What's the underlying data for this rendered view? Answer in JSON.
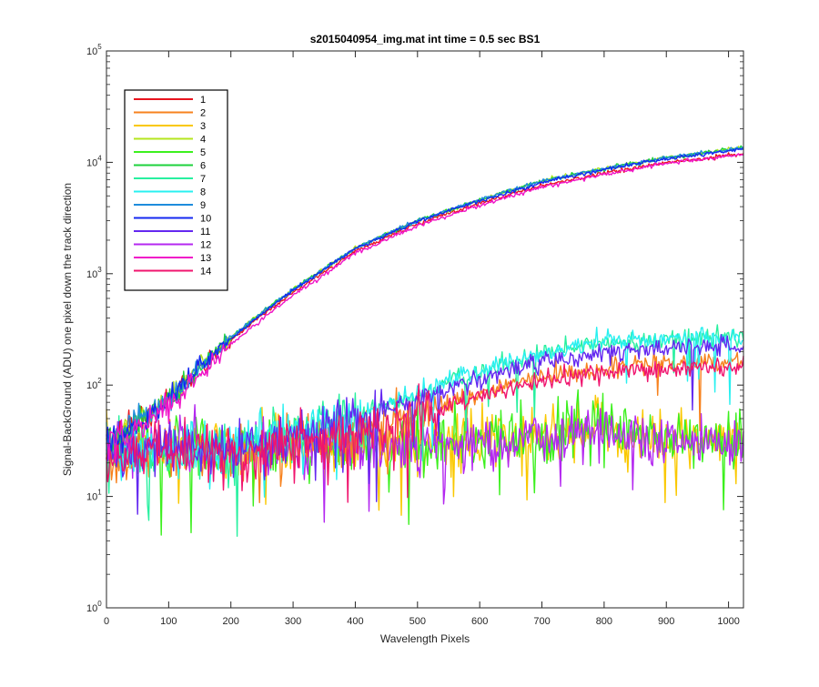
{
  "chart_data": {
    "type": "line",
    "title": "s2015040954_img.mat int time = 0.5 sec   BS1",
    "xlabel": "Wavelength Pixels",
    "ylabel": "Signal-BackGround (ADU) one pixel down the track direction",
    "xlim": [
      0,
      1024
    ],
    "ylim": [
      1,
      100000
    ],
    "yscale": "log",
    "grid": false,
    "legend_position": "top-left",
    "x_ticks": [
      0,
      100,
      200,
      300,
      400,
      500,
      600,
      700,
      800,
      900,
      1000
    ],
    "y_ticks": [
      {
        "base": "10",
        "exp": "0",
        "value": 1
      },
      {
        "base": "10",
        "exp": "1",
        "value": 10
      },
      {
        "base": "10",
        "exp": "2",
        "value": 100
      },
      {
        "base": "10",
        "exp": "3",
        "value": 1000
      },
      {
        "base": "10",
        "exp": "4",
        "value": 10000
      },
      {
        "base": "10",
        "exp": "5",
        "value": 100000
      }
    ],
    "series": [
      {
        "name": "1",
        "color": "#e8141e",
        "group": "high",
        "anchors": [
          [
            0,
            30
          ],
          [
            50,
            45
          ],
          [
            100,
            75
          ],
          [
            150,
            140
          ],
          [
            200,
            250
          ],
          [
            250,
            420
          ],
          [
            300,
            680
          ],
          [
            400,
            1600
          ],
          [
            500,
            2800
          ],
          [
            600,
            4300
          ],
          [
            700,
            6200
          ],
          [
            800,
            8000
          ],
          [
            900,
            10000
          ],
          [
            1024,
            12000
          ]
        ]
      },
      {
        "name": "2",
        "color": "#f7821e",
        "group": "mid",
        "anchors": [
          [
            0,
            25
          ],
          [
            200,
            25
          ],
          [
            300,
            30
          ],
          [
            400,
            38
          ],
          [
            500,
            55
          ],
          [
            600,
            85
          ],
          [
            700,
            120
          ],
          [
            800,
            140
          ],
          [
            900,
            160
          ],
          [
            1024,
            165
          ]
        ]
      },
      {
        "name": "3",
        "color": "#fac800",
        "group": "low",
        "anchors": [
          [
            0,
            28
          ],
          [
            300,
            28
          ],
          [
            500,
            30
          ],
          [
            700,
            33
          ],
          [
            800,
            40
          ],
          [
            900,
            33
          ],
          [
            1024,
            30
          ]
        ]
      },
      {
        "name": "4",
        "color": "#b4e61e",
        "group": "high",
        "anchors": [
          [
            0,
            30
          ],
          [
            50,
            45
          ],
          [
            100,
            75
          ],
          [
            150,
            145
          ],
          [
            200,
            265
          ],
          [
            250,
            450
          ],
          [
            300,
            720
          ],
          [
            400,
            1700
          ],
          [
            500,
            3000
          ],
          [
            600,
            4600
          ],
          [
            700,
            6800
          ],
          [
            800,
            8800
          ],
          [
            900,
            11000
          ],
          [
            1024,
            13500
          ]
        ]
      },
      {
        "name": "5",
        "color": "#3cf01e",
        "group": "low",
        "anchors": [
          [
            0,
            28
          ],
          [
            300,
            28
          ],
          [
            500,
            30
          ],
          [
            700,
            33
          ],
          [
            800,
            42
          ],
          [
            900,
            33
          ],
          [
            1024,
            31
          ]
        ]
      },
      {
        "name": "6",
        "color": "#1ed23c",
        "group": "high",
        "anchors": [
          [
            0,
            30
          ],
          [
            50,
            45
          ],
          [
            100,
            75
          ],
          [
            150,
            145
          ],
          [
            200,
            265
          ],
          [
            250,
            450
          ],
          [
            300,
            720
          ],
          [
            400,
            1700
          ],
          [
            500,
            3000
          ],
          [
            600,
            4600
          ],
          [
            700,
            6800
          ],
          [
            800,
            8800
          ],
          [
            900,
            11000
          ],
          [
            1024,
            13500
          ]
        ]
      },
      {
        "name": "7",
        "color": "#28f0a0",
        "group": "mid",
        "anchors": [
          [
            0,
            25
          ],
          [
            200,
            27
          ],
          [
            300,
            35
          ],
          [
            400,
            50
          ],
          [
            500,
            80
          ],
          [
            600,
            130
          ],
          [
            700,
            190
          ],
          [
            800,
            240
          ],
          [
            900,
            260
          ],
          [
            1024,
            265
          ]
        ]
      },
      {
        "name": "8",
        "color": "#28f0f0",
        "group": "mid",
        "anchors": [
          [
            0,
            25
          ],
          [
            200,
            28
          ],
          [
            300,
            36
          ],
          [
            400,
            52
          ],
          [
            500,
            85
          ],
          [
            600,
            135
          ],
          [
            700,
            195
          ],
          [
            800,
            245
          ],
          [
            900,
            265
          ],
          [
            1024,
            270
          ]
        ]
      },
      {
        "name": "9",
        "color": "#1e8cdc",
        "group": "high",
        "anchors": [
          [
            0,
            30
          ],
          [
            50,
            45
          ],
          [
            100,
            75
          ],
          [
            150,
            145
          ],
          [
            200,
            265
          ],
          [
            250,
            450
          ],
          [
            300,
            720
          ],
          [
            400,
            1700
          ],
          [
            500,
            3000
          ],
          [
            600,
            4600
          ],
          [
            700,
            6800
          ],
          [
            800,
            8800
          ],
          [
            900,
            11000
          ],
          [
            1024,
            13500
          ]
        ]
      },
      {
        "name": "10",
        "color": "#1428f0",
        "group": "high",
        "anchors": [
          [
            0,
            30
          ],
          [
            50,
            45
          ],
          [
            100,
            75
          ],
          [
            150,
            145
          ],
          [
            200,
            260
          ],
          [
            250,
            440
          ],
          [
            300,
            710
          ],
          [
            400,
            1680
          ],
          [
            500,
            2950
          ],
          [
            600,
            4500
          ],
          [
            700,
            6600
          ],
          [
            800,
            8600
          ],
          [
            900,
            10800
          ],
          [
            1024,
            13200
          ]
        ]
      },
      {
        "name": "11",
        "color": "#6428f0",
        "group": "mid",
        "anchors": [
          [
            0,
            25
          ],
          [
            200,
            27
          ],
          [
            300,
            34
          ],
          [
            400,
            48
          ],
          [
            500,
            75
          ],
          [
            600,
            115
          ],
          [
            700,
            160
          ],
          [
            800,
            195
          ],
          [
            900,
            215
          ],
          [
            1024,
            225
          ]
        ]
      },
      {
        "name": "12",
        "color": "#b428f0",
        "group": "low",
        "anchors": [
          [
            0,
            28
          ],
          [
            300,
            28
          ],
          [
            500,
            30
          ],
          [
            700,
            33
          ],
          [
            800,
            40
          ],
          [
            900,
            33
          ],
          [
            1024,
            30
          ]
        ]
      },
      {
        "name": "13",
        "color": "#f014c8",
        "group": "high",
        "anchors": [
          [
            0,
            28
          ],
          [
            50,
            40
          ],
          [
            100,
            65
          ],
          [
            150,
            125
          ],
          [
            200,
            230
          ],
          [
            250,
            390
          ],
          [
            300,
            640
          ],
          [
            400,
            1520
          ],
          [
            500,
            2700
          ],
          [
            600,
            4100
          ],
          [
            700,
            6000
          ],
          [
            800,
            7800
          ],
          [
            900,
            9800
          ],
          [
            1024,
            11800
          ]
        ]
      },
      {
        "name": "14",
        "color": "#f0146e",
        "group": "mid",
        "anchors": [
          [
            0,
            25
          ],
          [
            200,
            25
          ],
          [
            300,
            29
          ],
          [
            400,
            36
          ],
          [
            500,
            52
          ],
          [
            600,
            80
          ],
          [
            700,
            110
          ],
          [
            800,
            125
          ],
          [
            900,
            140
          ],
          [
            1024,
            145
          ]
        ]
      }
    ]
  }
}
